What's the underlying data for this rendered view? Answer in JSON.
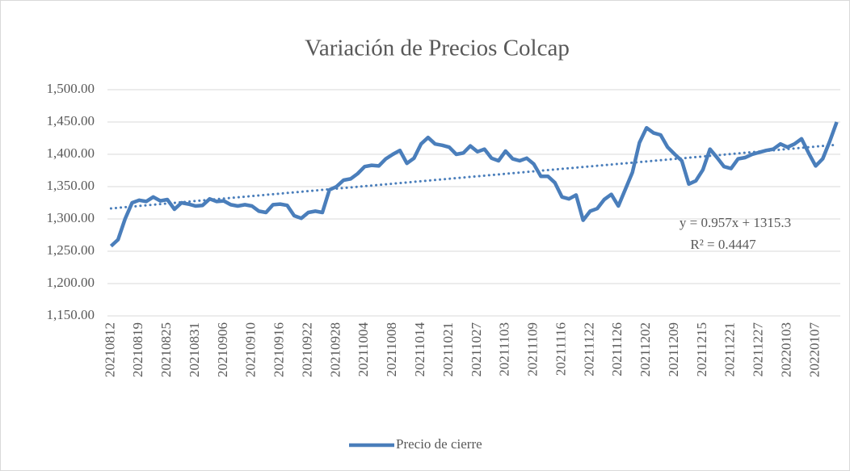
{
  "chart_data": {
    "type": "line",
    "title": "Variación de Precios Colcap",
    "categories": [
      "20210812",
      null,
      null,
      null,
      "20210819",
      null,
      null,
      null,
      "20210825",
      null,
      null,
      null,
      "20210831",
      null,
      null,
      null,
      "20210906",
      null,
      null,
      null,
      "20210910",
      null,
      null,
      null,
      "20210916",
      null,
      null,
      null,
      "20210922",
      null,
      null,
      null,
      "20210928",
      null,
      null,
      null,
      "20211004",
      null,
      null,
      null,
      "20211008",
      null,
      null,
      null,
      "20211014",
      null,
      null,
      null,
      "20211021",
      null,
      null,
      null,
      "20211027",
      null,
      null,
      null,
      "20211103",
      null,
      null,
      null,
      "20211109",
      null,
      null,
      null,
      "20211116",
      null,
      null,
      null,
      "20211122",
      null,
      null,
      null,
      "20211126",
      null,
      null,
      null,
      "20211202",
      null,
      null,
      null,
      "20211209",
      null,
      null,
      null,
      "20211215",
      null,
      null,
      null,
      "20211221",
      null,
      null,
      null,
      "20211227",
      null,
      null,
      null,
      "20220103",
      null,
      null,
      null,
      "20220107",
      null,
      null,
      null
    ],
    "series": [
      {
        "name": "Precio de cierre",
        "color": "#4a7ebb",
        "values": [
          1258,
          1268,
          1300,
          1325,
          1329,
          1327,
          1334,
          1328,
          1330,
          1315,
          1325,
          1323,
          1320,
          1321,
          1331,
          1327,
          1328,
          1322,
          1320,
          1322,
          1320,
          1312,
          1310,
          1322,
          1323,
          1321,
          1305,
          1301,
          1310,
          1312,
          1310,
          1345,
          1350,
          1360,
          1362,
          1370,
          1381,
          1383,
          1382,
          1393,
          1400,
          1406,
          1386,
          1394,
          1416,
          1426,
          1416,
          1414,
          1411,
          1400,
          1402,
          1413,
          1404,
          1408,
          1394,
          1390,
          1405,
          1393,
          1390,
          1394,
          1385,
          1366,
          1366,
          1356,
          1334,
          1331,
          1337,
          1298,
          1312,
          1316,
          1330,
          1338,
          1320,
          1346,
          1372,
          1418,
          1441,
          1433,
          1430,
          1411,
          1400,
          1390,
          1354,
          1359,
          1376,
          1408,
          1395,
          1381,
          1378,
          1393,
          1395,
          1400,
          1403,
          1406,
          1408,
          1416,
          1411,
          1416,
          1424,
          1402,
          1382,
          1393,
          1420,
          1450
        ]
      }
    ],
    "trendline": {
      "slope": 0.957,
      "intercept": 1315.3,
      "equation": "y = 0.957x + 1315.3",
      "r2": "R² = 0.4447"
    },
    "ylim": [
      1150,
      1500
    ],
    "yticks": [
      {
        "value": 1150,
        "label": "1,150.00"
      },
      {
        "value": 1200,
        "label": "1,200.00"
      },
      {
        "value": 1250,
        "label": "1,250.00"
      },
      {
        "value": 1300,
        "label": "1,300.00"
      },
      {
        "value": 1350,
        "label": "1,350.00"
      },
      {
        "value": 1400,
        "label": "1,400.00"
      },
      {
        "value": 1450,
        "label": "1,450.00"
      },
      {
        "value": 1500,
        "label": "1,500.00"
      }
    ],
    "grid": true,
    "legend": "bottom"
  }
}
